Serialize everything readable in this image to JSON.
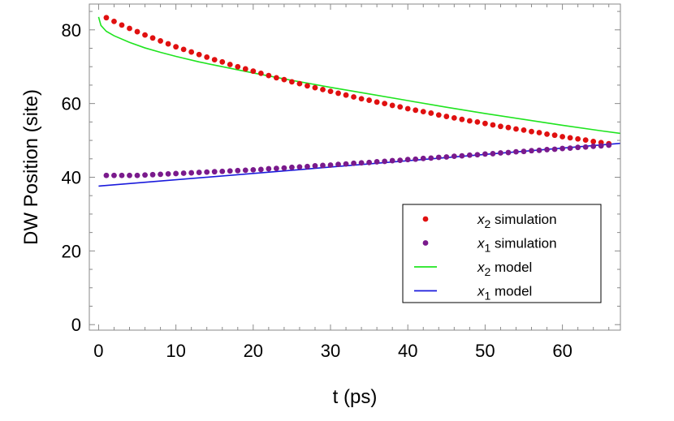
{
  "chart_data": {
    "type": "scatter",
    "xlabel": "t (ps)",
    "ylabel": "DW Position (site)",
    "xlim": [
      -1.2,
      67.5
    ],
    "ylim": [
      -1.5,
      87
    ],
    "xticks": [
      0,
      10,
      20,
      30,
      40,
      50,
      60
    ],
    "yticks": [
      0,
      20,
      40,
      60,
      80
    ],
    "grid": false,
    "legend_position": "bottom-right",
    "series": [
      {
        "name": "x2 simulation",
        "legend_var": "x",
        "legend_sub": "2",
        "legend_rest": " simulation",
        "kind": "points",
        "color": "#e01010",
        "x": [
          1,
          2,
          3,
          4,
          5,
          6,
          7,
          8,
          9,
          10,
          11,
          12,
          13,
          14,
          15,
          16,
          17,
          18,
          19,
          20,
          21,
          22,
          23,
          24,
          25,
          26,
          27,
          28,
          29,
          30,
          31,
          32,
          33,
          34,
          35,
          36,
          37,
          38,
          39,
          40,
          41,
          42,
          43,
          44,
          45,
          46,
          47,
          48,
          49,
          50,
          51,
          52,
          53,
          54,
          55,
          56,
          57,
          58,
          59,
          60,
          61,
          62,
          63,
          64,
          65,
          66
        ],
        "y": [
          83.3,
          82.3,
          81.3,
          80.4,
          79.5,
          78.6,
          77.8,
          77.0,
          76.2,
          75.4,
          74.7,
          74.0,
          73.3,
          72.6,
          71.9,
          71.3,
          70.6,
          70.0,
          69.4,
          68.8,
          68.2,
          67.6,
          67.0,
          66.5,
          65.9,
          65.4,
          64.8,
          64.3,
          63.8,
          63.3,
          62.8,
          62.3,
          61.8,
          61.3,
          60.9,
          60.4,
          60.0,
          59.5,
          59.1,
          58.6,
          58.2,
          57.8,
          57.4,
          56.9,
          56.5,
          56.1,
          55.7,
          55.3,
          55.0,
          54.6,
          54.2,
          53.8,
          53.5,
          53.1,
          52.8,
          52.4,
          52.1,
          51.7,
          51.4,
          51.0,
          50.7,
          50.4,
          50.1,
          49.7,
          49.4,
          49.1
        ]
      },
      {
        "name": "x1 simulation",
        "legend_var": "x",
        "legend_sub": "1",
        "legend_rest": " simulation",
        "kind": "points",
        "color": "#7a1a8c",
        "x": [
          1,
          2,
          3,
          4,
          5,
          6,
          7,
          8,
          9,
          10,
          11,
          12,
          13,
          14,
          15,
          16,
          17,
          18,
          19,
          20,
          21,
          22,
          23,
          24,
          25,
          26,
          27,
          28,
          29,
          30,
          31,
          32,
          33,
          34,
          35,
          36,
          37,
          38,
          39,
          40,
          41,
          42,
          43,
          44,
          45,
          46,
          47,
          48,
          49,
          50,
          51,
          52,
          53,
          54,
          55,
          56,
          57,
          58,
          59,
          60,
          61,
          62,
          63,
          64,
          65,
          66
        ],
        "y": [
          40.5,
          40.5,
          40.5,
          40.5,
          40.5,
          40.6,
          40.7,
          40.8,
          40.9,
          41.0,
          41.1,
          41.2,
          41.3,
          41.4,
          41.5,
          41.6,
          41.7,
          41.8,
          41.9,
          42.0,
          42.1,
          42.3,
          42.4,
          42.5,
          42.7,
          42.8,
          42.9,
          43.1,
          43.2,
          43.3,
          43.5,
          43.6,
          43.8,
          43.9,
          44.0,
          44.2,
          44.3,
          44.5,
          44.6,
          44.8,
          44.9,
          45.1,
          45.2,
          45.4,
          45.5,
          45.7,
          45.8,
          46.0,
          46.1,
          46.3,
          46.4,
          46.6,
          46.7,
          46.9,
          47.0,
          47.2,
          47.3,
          47.5,
          47.6,
          47.8,
          47.9,
          48.1,
          48.2,
          48.4,
          48.5,
          48.7
        ]
      },
      {
        "name": "x2 model",
        "legend_var": "x",
        "legend_sub": "2",
        "legend_rest": " model",
        "kind": "line",
        "color": "#1fe41f",
        "x": [
          0,
          0.3,
          1,
          2,
          4,
          6,
          8,
          10,
          13,
          16,
          20,
          25,
          30,
          35,
          40,
          45,
          50,
          55,
          60,
          65,
          67.5
        ],
        "y": [
          83.5,
          81.2,
          79.6,
          78.4,
          76.6,
          75.1,
          73.9,
          72.8,
          71.3,
          70.0,
          68.3,
          66.3,
          64.4,
          62.6,
          60.8,
          59.0,
          57.3,
          55.7,
          54.1,
          52.6,
          51.9
        ]
      },
      {
        "name": "x1 model",
        "legend_var": "x",
        "legend_sub": "1",
        "legend_rest": " model",
        "kind": "line",
        "color": "#1a1adc",
        "x": [
          0,
          67.5
        ],
        "y": [
          37.6,
          49.2
        ]
      }
    ]
  }
}
